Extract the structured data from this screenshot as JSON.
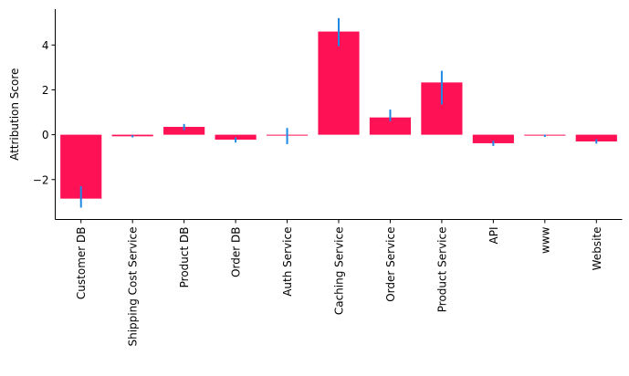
{
  "chart_data": {
    "type": "bar",
    "title": "",
    "xlabel": "",
    "ylabel": "Attribution Score",
    "categories": [
      "Customer DB",
      "Shipping Cost Service",
      "Product DB",
      "Order DB",
      "Auth Service",
      "Caching Service",
      "Order Service",
      "Product Service",
      "API",
      "www",
      "Website"
    ],
    "values": [
      -2.85,
      -0.07,
      0.35,
      -0.22,
      0.0,
      4.6,
      0.77,
      2.33,
      -0.38,
      -0.04,
      -0.3
    ],
    "error_low": [
      -3.25,
      -0.12,
      0.2,
      -0.35,
      -0.42,
      3.95,
      0.6,
      1.35,
      -0.5,
      -0.1,
      -0.4
    ],
    "error_high": [
      -2.3,
      -0.02,
      0.48,
      -0.12,
      0.3,
      5.2,
      1.12,
      2.85,
      -0.27,
      0.0,
      -0.2
    ],
    "ylim": [
      -3.78,
      5.6
    ],
    "yticks": [
      -2,
      0,
      2,
      4
    ],
    "ytick_labels": [
      "−2",
      "0",
      "2",
      "4"
    ],
    "grid": false,
    "legend": "none",
    "bar_color": "#ff1155",
    "error_color": "#1e88e5"
  }
}
